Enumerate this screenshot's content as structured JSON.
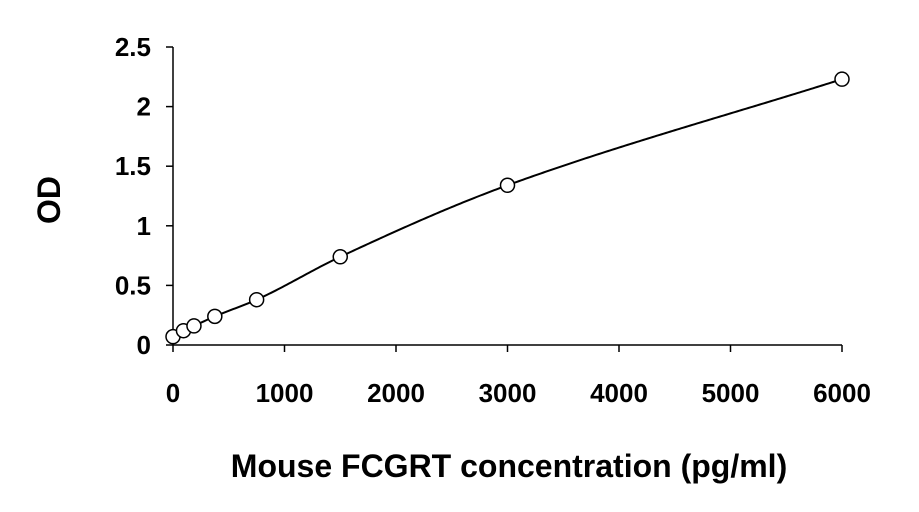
{
  "chart_data": {
    "type": "scatter",
    "title": "",
    "xlabel": "Mouse FCGRT concentration (pg/ml)",
    "ylabel": "OD",
    "xlim": [
      0,
      6000
    ],
    "ylim": [
      0,
      2.5
    ],
    "x_ticks": [
      "0",
      "1000",
      "2000",
      "3000",
      "4000",
      "5000",
      "6000"
    ],
    "y_ticks": [
      "0",
      "0.5",
      "1",
      "1.5",
      "2",
      "2.5"
    ],
    "grid": false,
    "legend": "none",
    "series": [
      {
        "x": [
          0,
          94,
          188,
          375,
          750,
          1500,
          3000,
          6000
        ],
        "y": [
          0.07,
          0.12,
          0.16,
          0.24,
          0.38,
          0.74,
          1.34,
          2.23
        ],
        "marker": "open-circle",
        "fit": "smooth-curve",
        "color": "#000000"
      }
    ]
  }
}
